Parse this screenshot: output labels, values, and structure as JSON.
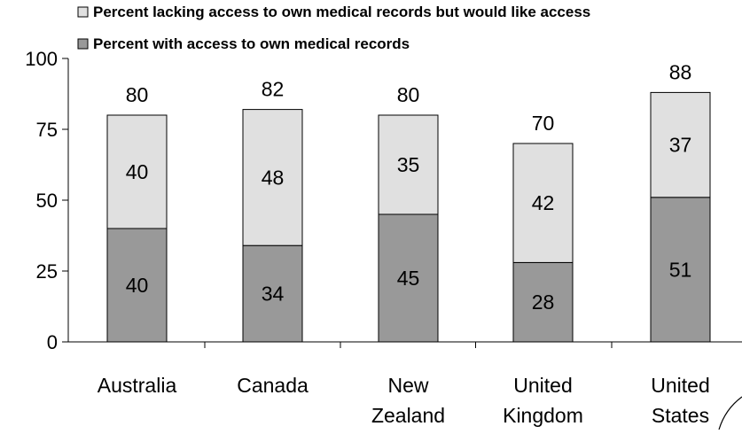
{
  "chart_data": {
    "type": "bar",
    "stacked": true,
    "categories": [
      [
        "Australia"
      ],
      [
        "Canada"
      ],
      [
        "New",
        "Zealand"
      ],
      [
        "United",
        "Kingdom"
      ],
      [
        "United",
        "States"
      ]
    ],
    "series": [
      {
        "name": "Percent with access to own medical records",
        "values": [
          40,
          34,
          45,
          28,
          51
        ],
        "color": "#999999"
      },
      {
        "name": "Percent lacking access to own medical records but would like access",
        "values": [
          40,
          48,
          35,
          42,
          37
        ],
        "color": "#e0e0e0"
      }
    ],
    "totals": [
      80,
      82,
      80,
      70,
      88
    ],
    "ylim": [
      0,
      100
    ],
    "yticks": [
      0,
      25,
      50,
      75,
      100
    ],
    "grid": false,
    "legend_position": "top",
    "title": "",
    "xlabel": "",
    "ylabel": ""
  }
}
